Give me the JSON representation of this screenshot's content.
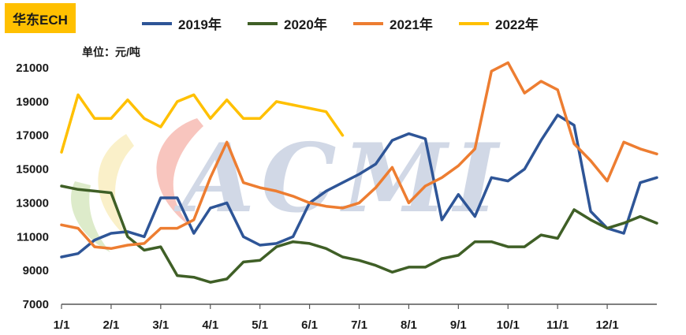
{
  "chart_data": {
    "type": "line",
    "title": "华东ECH",
    "unit": "单位：元/吨",
    "x": [
      "1/1",
      "1/11",
      "1/21",
      "2/1",
      "2/11",
      "2/21",
      "3/1",
      "3/11",
      "3/21",
      "4/1",
      "4/11",
      "4/21",
      "5/1",
      "5/11",
      "5/21",
      "6/1",
      "6/11",
      "6/21",
      "7/1",
      "7/11",
      "7/21",
      "8/1",
      "8/11",
      "8/21",
      "9/1",
      "9/11",
      "9/21",
      "10/1",
      "10/11",
      "10/21",
      "11/1",
      "11/11",
      "11/21",
      "12/1",
      "12/11",
      "12/21",
      "12/31"
    ],
    "x_ticks": [
      "1/1",
      "2/1",
      "3/1",
      "4/1",
      "5/1",
      "6/1",
      "7/1",
      "8/1",
      "9/1",
      "10/1",
      "11/1",
      "12/1"
    ],
    "y_ticks": [
      7000,
      9000,
      11000,
      13000,
      15000,
      17000,
      19000,
      21000
    ],
    "ylim": [
      7000,
      21000
    ],
    "grid": false,
    "legend_position": "top",
    "series": [
      {
        "name": "2019年",
        "color": "#2e5597",
        "values": [
          9800,
          10000,
          10800,
          11200,
          11300,
          11000,
          13300,
          13300,
          11200,
          12700,
          13000,
          11000,
          10500,
          10600,
          11000,
          13000,
          13700,
          14200,
          14700,
          15300,
          16700,
          17100,
          16800,
          12000,
          13500,
          12200,
          14500,
          14300,
          15000,
          16700,
          18200,
          17600,
          12500,
          11500,
          11200,
          14200,
          14500
        ]
      },
      {
        "name": "2020年",
        "color": "#3f5f26",
        "values": [
          14000,
          13800,
          13700,
          13600,
          11000,
          10200,
          10400,
          8700,
          8600,
          8300,
          8500,
          9500,
          9600,
          10400,
          10700,
          10600,
          10300,
          9800,
          9600,
          9300,
          8900,
          9200,
          9200,
          9700,
          9900,
          10700,
          10700,
          10400,
          10400,
          11100,
          10900,
          12600,
          12000,
          11500,
          11800,
          12200,
          11800
        ]
      },
      {
        "name": "2021年",
        "color": "#ed7d31",
        "values": [
          11700,
          11500,
          10400,
          10300,
          10500,
          10600,
          11500,
          11500,
          12000,
          14500,
          16600,
          14200,
          13900,
          13700,
          13400,
          13000,
          12800,
          12700,
          13000,
          13900,
          15100,
          13000,
          14000,
          14500,
          15200,
          16200,
          20800,
          21300,
          19500,
          20200,
          19700,
          16500,
          15500,
          14300,
          16600,
          16200,
          15900
        ]
      },
      {
        "name": "2022年",
        "color": "#ffc000",
        "values": [
          16000,
          19400,
          18000,
          18000,
          19100,
          18000,
          17500,
          19000,
          19400,
          18000,
          19100,
          18000,
          18000,
          19000,
          18800,
          18600,
          18400,
          17000,
          null,
          null,
          null,
          null,
          null,
          null,
          null,
          null,
          null,
          null,
          null,
          null,
          null,
          null,
          null,
          null,
          null,
          null,
          null
        ]
      }
    ]
  }
}
